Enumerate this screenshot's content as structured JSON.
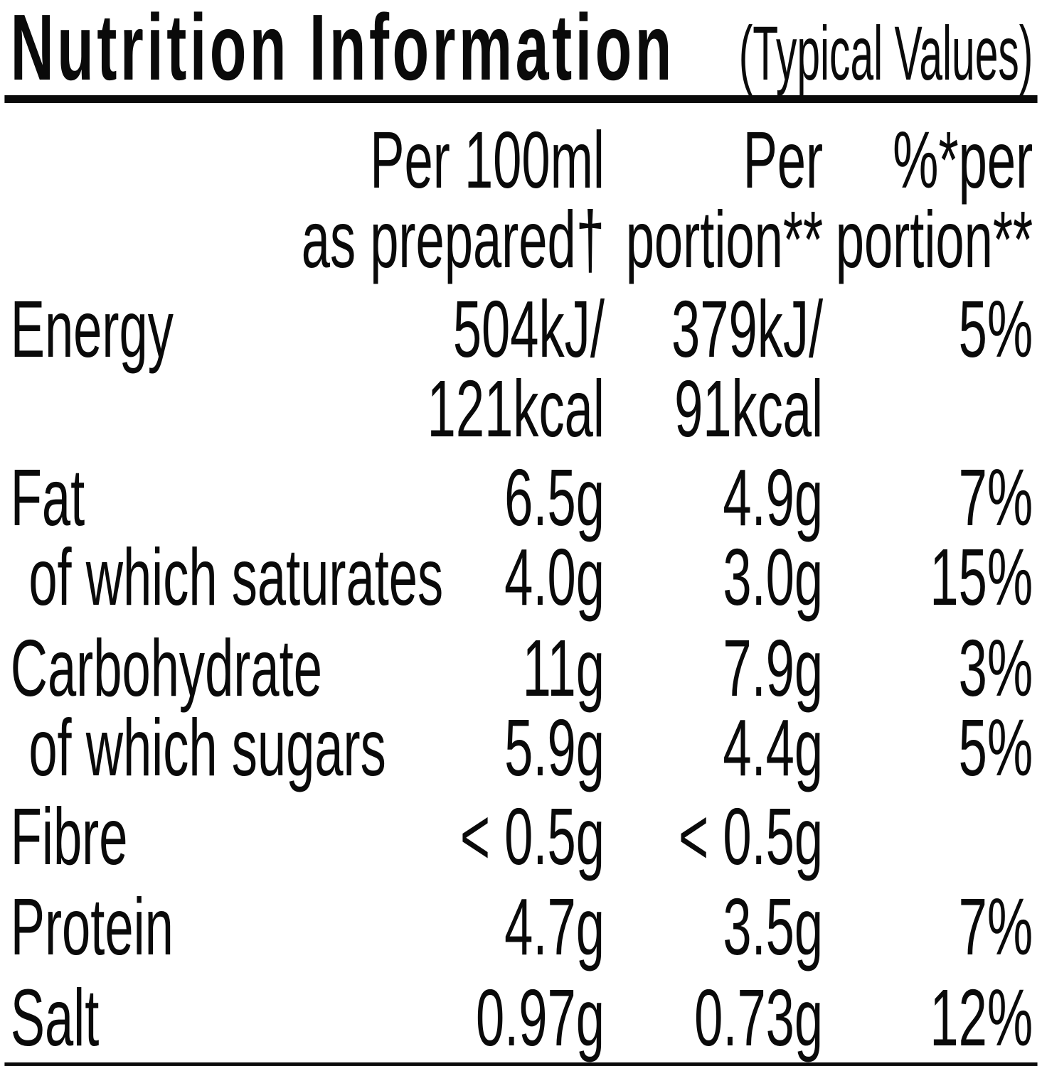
{
  "title": {
    "main": "Nutrition Information",
    "suffix": "(Typical Values)"
  },
  "table": {
    "header": {
      "per100": "Per 100ml\nas prepared†",
      "portion": "Per\nportion**",
      "pct": "%*per\nportion**"
    },
    "rows": [
      {
        "label": "Energy",
        "per100": "504kJ/\n121kcal",
        "portion": "379kJ/\n91kcal",
        "pct": "5%"
      },
      {
        "label": "Fat",
        "per100": "6.5g",
        "portion": "4.9g",
        "pct": "7%"
      },
      {
        "label": "of which saturates",
        "per100": "4.0g",
        "portion": "3.0g",
        "pct": "15%"
      },
      {
        "label": "Carbohydrate",
        "per100": "11g",
        "portion": "7.9g",
        "pct": "3%"
      },
      {
        "label": "of which sugars",
        "per100": "5.9g",
        "portion": "4.4g",
        "pct": "5%"
      },
      {
        "label": "Fibre",
        "per100": "< 0.5g",
        "portion": "< 0.5g",
        "pct": ""
      },
      {
        "label": "Protein",
        "per100": "4.7g",
        "portion": "3.5g",
        "pct": "7%"
      },
      {
        "label": "Salt",
        "per100": "0.97g",
        "portion": "0.73g",
        "pct": "12%"
      }
    ]
  },
  "colors": {
    "text": "#0a0a0a",
    "rule": "#0a0a0a",
    "background": "#ffffff"
  }
}
